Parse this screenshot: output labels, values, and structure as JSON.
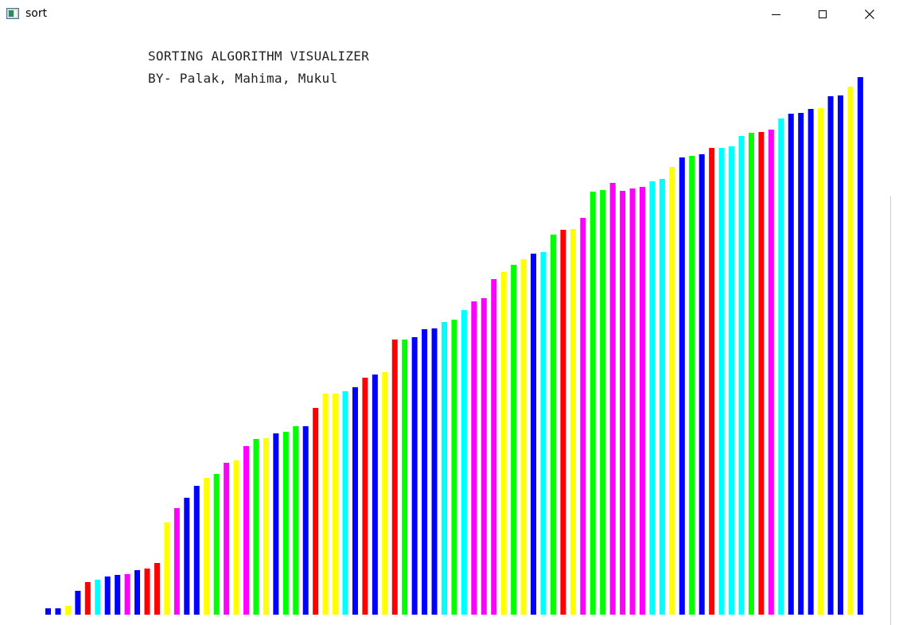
{
  "window": {
    "title": "sort",
    "controls": {
      "minimize": "minimize",
      "maximize": "maximize",
      "close": "close"
    }
  },
  "visualizer": {
    "title": "SORTING ALGORITHM VISUALIZER",
    "authors": "BY- Palak, Mahima, Mukul"
  },
  "colors": {
    "blue": "#0000ff",
    "yellow": "#ffff00",
    "red": "#ff0000",
    "cyan": "#00ffff",
    "magenta": "#ff00ff",
    "green": "#00ff00"
  },
  "chart_data": {
    "type": "bar",
    "ylim": [
      0,
      676
    ],
    "values": [
      8,
      8,
      11,
      30,
      41,
      44,
      48,
      50,
      51,
      56,
      58,
      65,
      116,
      134,
      147,
      162,
      172,
      177,
      191,
      194,
      212,
      221,
      222,
      228,
      230,
      237,
      237,
      260,
      278,
      278,
      281,
      286,
      298,
      302,
      305,
      346,
      346,
      349,
      359,
      360,
      368,
      371,
      383,
      394,
      398,
      422,
      431,
      440,
      447,
      454,
      456,
      478,
      484,
      485,
      499,
      532,
      534,
      543,
      533,
      536,
      538,
      545,
      548,
      563,
      575,
      577,
      579,
      587,
      587,
      589,
      602,
      606,
      607,
      610,
      624,
      630,
      631,
      636,
      637,
      652,
      653,
      664,
      676
    ],
    "bar_colors": [
      "blue",
      "blue",
      "yellow",
      "blue",
      "red",
      "cyan",
      "blue",
      "blue",
      "magenta",
      "blue",
      "red",
      "red",
      "yellow",
      "magenta",
      "blue",
      "blue",
      "yellow",
      "green",
      "magenta",
      "yellow",
      "magenta",
      "green",
      "yellow",
      "blue",
      "green",
      "green",
      "blue",
      "red",
      "yellow",
      "yellow",
      "cyan",
      "blue",
      "red",
      "blue",
      "yellow",
      "red",
      "green",
      "blue",
      "blue",
      "blue",
      "cyan",
      "green",
      "cyan",
      "magenta",
      "magenta",
      "magenta",
      "yellow",
      "green",
      "yellow",
      "blue",
      "cyan",
      "green",
      "red",
      "yellow",
      "magenta",
      "green",
      "green",
      "magenta",
      "magenta",
      "magenta",
      "magenta",
      "cyan",
      "cyan",
      "yellow",
      "blue",
      "green",
      "blue",
      "red",
      "cyan",
      "cyan",
      "cyan",
      "green",
      "red",
      "magenta",
      "cyan",
      "blue",
      "blue",
      "blue",
      "yellow",
      "blue",
      "blue",
      "yellow",
      "blue"
    ]
  }
}
